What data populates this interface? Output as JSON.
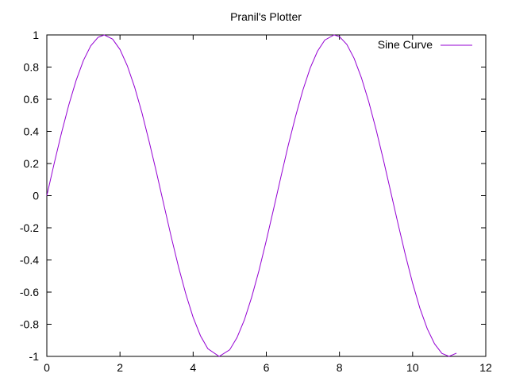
{
  "chart_data": {
    "type": "line",
    "title": "Pranil's Plotter",
    "xlabel": "",
    "ylabel": "",
    "xlim": [
      0,
      12
    ],
    "ylim": [
      -1,
      1
    ],
    "x_ticks": [
      0,
      2,
      4,
      6,
      8,
      10,
      12
    ],
    "y_ticks": [
      -1,
      -0.8,
      -0.6,
      -0.4,
      -0.2,
      0,
      0.2,
      0.4,
      0.6,
      0.8,
      1
    ],
    "x_tick_labels": [
      "0",
      "2",
      "4",
      "6",
      "8",
      "10",
      "12"
    ],
    "y_tick_labels": [
      "-1",
      "-0.8",
      "-0.6",
      "-0.4",
      "-0.2",
      "0",
      "0.2",
      "0.4",
      "0.6",
      "0.8",
      "1"
    ],
    "grid": false,
    "legend_position": "top-right",
    "series": [
      {
        "name": "Sine Curve",
        "color": "#9400d3",
        "x": [
          0,
          0.2,
          0.4,
          0.6,
          0.8,
          1.0,
          1.2,
          1.4,
          1.571,
          1.8,
          2.0,
          2.2,
          2.4,
          2.6,
          2.8,
          3.0,
          3.2,
          3.4,
          3.6,
          3.8,
          4.0,
          4.2,
          4.4,
          4.712,
          5.0,
          5.2,
          5.4,
          5.6,
          5.8,
          6.0,
          6.2,
          6.4,
          6.6,
          6.8,
          7.0,
          7.2,
          7.4,
          7.6,
          7.854,
          8.0,
          8.2,
          8.4,
          8.6,
          8.8,
          9.0,
          9.2,
          9.4,
          9.6,
          9.8,
          10.0,
          10.2,
          10.4,
          10.6,
          10.8,
          10.996,
          11.2
        ],
        "y": [
          0,
          0.199,
          0.389,
          0.565,
          0.717,
          0.841,
          0.932,
          0.985,
          1.0,
          0.974,
          0.909,
          0.808,
          0.675,
          0.516,
          0.335,
          0.141,
          -0.058,
          -0.256,
          -0.443,
          -0.612,
          -0.757,
          -0.872,
          -0.952,
          -1.0,
          -0.959,
          -0.883,
          -0.773,
          -0.631,
          -0.465,
          -0.279,
          -0.083,
          0.117,
          0.312,
          0.494,
          0.657,
          0.794,
          0.899,
          0.968,
          1.0,
          0.989,
          0.941,
          0.855,
          0.734,
          0.585,
          0.412,
          0.223,
          0.025,
          -0.174,
          -0.366,
          -0.544,
          -0.7,
          -0.828,
          -0.922,
          -0.981,
          -1.0,
          -0.98
        ]
      }
    ]
  }
}
